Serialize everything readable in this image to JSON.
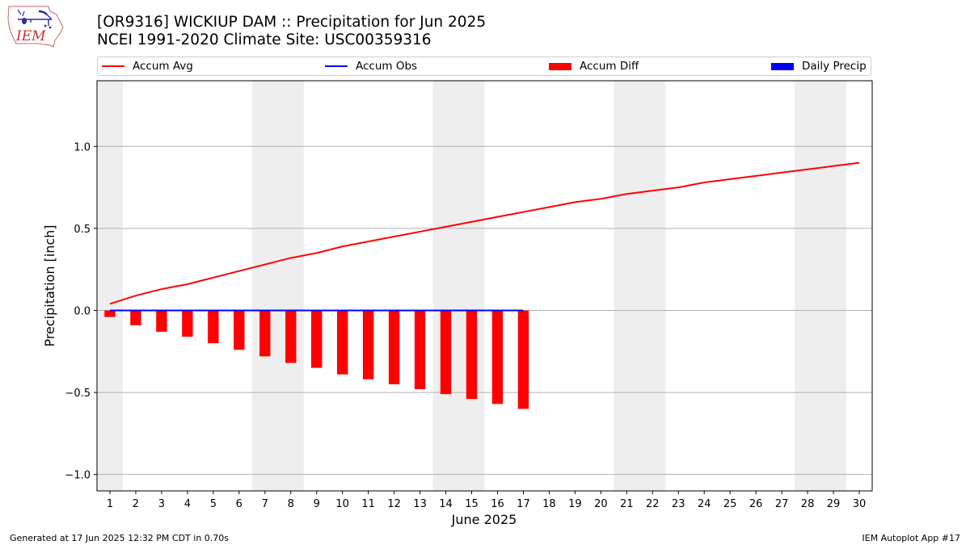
{
  "header": {
    "title_line1": "[OR9316] WICKIUP DAM :: Precipitation for Jun 2025",
    "title_line2": "NCEI 1991-2020 Climate Site: USC00359316",
    "logo_text": "IEM"
  },
  "legend": {
    "placement": "top",
    "items": [
      {
        "label": "Accum Avg",
        "kind": "line",
        "color": "#ff0000"
      },
      {
        "label": "Accum Obs",
        "kind": "line",
        "color": "#0000ff"
      },
      {
        "label": "Accum Diff",
        "kind": "box",
        "color": "#ff0000"
      },
      {
        "label": "Daily Precip",
        "kind": "box",
        "color": "#0000ff"
      }
    ]
  },
  "footer": {
    "left": "Generated at 17 Jun 2025 12:32 PM CDT in 0.70s",
    "right": "IEM Autoplot App #17"
  },
  "chart_data": {
    "type": "bar",
    "xlabel": "June 2025",
    "ylabel": "Precipitation [inch]",
    "xlim": [
      0.5,
      30.5
    ],
    "ylim": [
      -1.1,
      1.4
    ],
    "yticks": [
      -1.0,
      -0.5,
      0.0,
      0.5,
      1.0
    ],
    "ytick_labels": [
      "−1.0",
      "−0.5",
      "0.0",
      "0.5",
      "1.0"
    ],
    "xticks": [
      1,
      2,
      3,
      4,
      5,
      6,
      7,
      8,
      9,
      10,
      11,
      12,
      13,
      14,
      15,
      16,
      17,
      18,
      19,
      20,
      21,
      22,
      23,
      24,
      25,
      26,
      27,
      28,
      29,
      30
    ],
    "grid": "horizontal",
    "weekend_shading": [
      [
        0.5,
        1.5
      ],
      [
        6.5,
        8.5
      ],
      [
        13.5,
        15.5
      ],
      [
        20.5,
        22.5
      ],
      [
        27.5,
        29.5
      ]
    ],
    "colors": {
      "avg": "#ff0000",
      "obs": "#0000ff",
      "diff": "#ff0000",
      "daily": "#0000ff",
      "shade": "#eeeeee",
      "grid": "#b0b0b0"
    },
    "series": [
      {
        "name": "Accum Avg",
        "kind": "line",
        "x": [
          1,
          2,
          3,
          4,
          5,
          6,
          7,
          8,
          9,
          10,
          11,
          12,
          13,
          14,
          15,
          16,
          17,
          18,
          19,
          20,
          21,
          22,
          23,
          24,
          25,
          26,
          27,
          28,
          29,
          30
        ],
        "values": [
          0.04,
          0.09,
          0.13,
          0.16,
          0.2,
          0.24,
          0.28,
          0.32,
          0.35,
          0.39,
          0.42,
          0.45,
          0.48,
          0.51,
          0.54,
          0.57,
          0.6,
          0.63,
          0.66,
          0.68,
          0.71,
          0.73,
          0.75,
          0.78,
          0.8,
          0.82,
          0.84,
          0.86,
          0.88,
          0.9
        ]
      },
      {
        "name": "Accum Obs",
        "kind": "line",
        "x": [
          1,
          2,
          3,
          4,
          5,
          6,
          7,
          8,
          9,
          10,
          11,
          12,
          13,
          14,
          15,
          16,
          17
        ],
        "values": [
          0,
          0,
          0,
          0,
          0,
          0,
          0,
          0,
          0,
          0,
          0,
          0,
          0,
          0,
          0,
          0,
          0
        ]
      },
      {
        "name": "Accum Diff",
        "kind": "bar",
        "x": [
          1,
          2,
          3,
          4,
          5,
          6,
          7,
          8,
          9,
          10,
          11,
          12,
          13,
          14,
          15,
          16,
          17
        ],
        "values": [
          -0.04,
          -0.09,
          -0.13,
          -0.16,
          -0.2,
          -0.24,
          -0.28,
          -0.32,
          -0.35,
          -0.39,
          -0.42,
          -0.45,
          -0.48,
          -0.51,
          -0.54,
          -0.57,
          -0.6
        ]
      },
      {
        "name": "Daily Precip",
        "kind": "bar",
        "x": [
          1,
          2,
          3,
          4,
          5,
          6,
          7,
          8,
          9,
          10,
          11,
          12,
          13,
          14,
          15,
          16,
          17
        ],
        "values": [
          0,
          0,
          0,
          0,
          0,
          0,
          0,
          0,
          0,
          0,
          0,
          0,
          0,
          0,
          0,
          0,
          0
        ]
      }
    ]
  }
}
